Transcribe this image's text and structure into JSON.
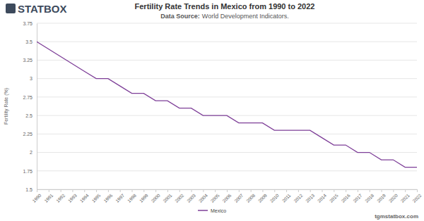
{
  "chart_data": {
    "type": "line",
    "logo": "STATBOX",
    "title": "Fertility Rate Trends in Mexico from 1990 to 2022",
    "subtitle_label": "Data Source:",
    "subtitle": "World Development Indicators.",
    "y_label": "Fertility Rate (%)",
    "footer": "tgmstatbox.com",
    "categories": [
      "1990",
      "1991",
      "1992",
      "1993",
      "1994",
      "1995",
      "1996",
      "1997",
      "1998",
      "1999",
      "2000",
      "2001",
      "2002",
      "2003",
      "2004",
      "2005",
      "2006",
      "2007",
      "2008",
      "2009",
      "2010",
      "2011",
      "2012",
      "2013",
      "2014",
      "2015",
      "2016",
      "2017",
      "2018",
      "2019",
      "2020",
      "2021",
      "2022"
    ],
    "series": [
      {
        "name": "Mexico",
        "color": "#7e3f98",
        "values": [
          3.5,
          3.4,
          3.3,
          3.2,
          3.1,
          3.0,
          3.0,
          2.9,
          2.8,
          2.8,
          2.7,
          2.7,
          2.6,
          2.6,
          2.5,
          2.5,
          2.5,
          2.4,
          2.4,
          2.4,
          2.3,
          2.3,
          2.3,
          2.3,
          2.2,
          2.1,
          2.1,
          2.0,
          2.0,
          1.9,
          1.9,
          1.8,
          1.8
        ]
      }
    ],
    "ylim": [
      1.5,
      3.75
    ],
    "yticks": [
      1.5,
      1.75,
      2,
      2.25,
      2.5,
      2.75,
      3,
      3.25,
      3.5,
      3.75
    ],
    "grid": true,
    "legend": "bottom"
  }
}
